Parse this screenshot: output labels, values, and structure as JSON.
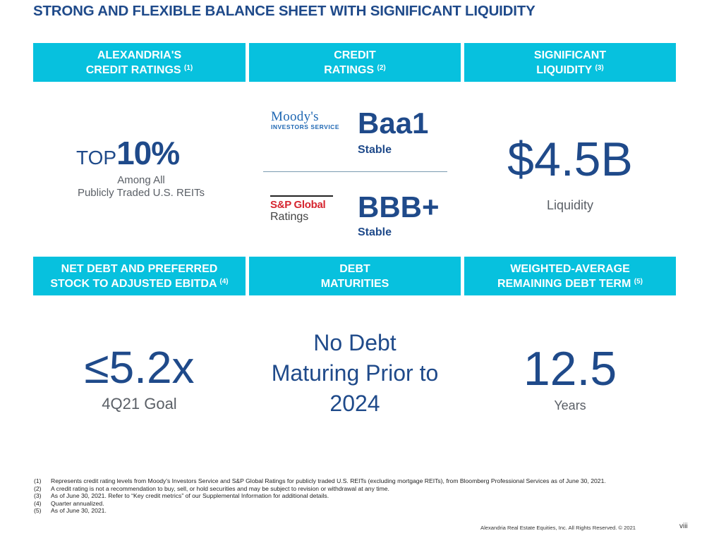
{
  "title": "STRONG AND FLEXIBLE BALANCE SHEET WITH SIGNIFICANT LIQUIDITY",
  "colors": {
    "header_bg": "#07c1de",
    "navy": "#1f4a8a",
    "gray_text": "#5a5f66",
    "sp_red": "#d6252f",
    "moodys_blue": "#1e67b3"
  },
  "sections": {
    "alexandria_credit": {
      "header_line1": "ALEXANDRIA'S",
      "header_line2": "CREDIT RATINGS",
      "footnote": "(1)",
      "prefix": "TOP",
      "value": "10%",
      "sub_line1": "Among All",
      "sub_line2": "Publicly Traded U.S. REITs"
    },
    "credit_ratings": {
      "header_line1": "CREDIT",
      "header_line2": "RATINGS",
      "footnote": "(2)",
      "moodys": {
        "logo_line1": "Moody's",
        "logo_line2": "INVESTORS SERVICE",
        "rating": "Baa1",
        "outlook": "Stable"
      },
      "sp": {
        "logo_line1": "S&P Global",
        "logo_line2": "Ratings",
        "rating": "BBB+",
        "outlook": "Stable"
      }
    },
    "liquidity": {
      "header_line1": "SIGNIFICANT",
      "header_line2": "LIQUIDITY",
      "footnote": "(3)",
      "value": "$4.5B",
      "label": "Liquidity"
    },
    "net_debt": {
      "header_line1": "NET DEBT AND PREFERRED",
      "header_line2": "STOCK TO ADJUSTED EBITDA",
      "footnote": "(4)",
      "value": "≤5.2x",
      "label": "4Q21 Goal"
    },
    "debt_maturities": {
      "header_line1": "DEBT",
      "header_line2": "MATURITIES",
      "line1": "No Debt",
      "line2": "Maturing Prior to",
      "line3": "2024"
    },
    "debt_term": {
      "header_line1": "WEIGHTED-AVERAGE",
      "header_line2": "REMAINING DEBT TERM",
      "footnote": "(5)",
      "value": "12.5",
      "label": "Years"
    }
  },
  "footnotes": [
    {
      "num": "(1)",
      "text": "Represents credit rating levels from Moody's Investors Service and S&P Global Ratings for publicly traded U.S. REITs (excluding mortgage REITs), from Bloomberg Professional Services as of June 30, 2021."
    },
    {
      "num": "(2)",
      "text": "A credit rating is not a recommendation to buy, sell, or hold securities and may be subject to revision or withdrawal at any time."
    },
    {
      "num": "(3)",
      "text": "As of June 30, 2021. Refer to “Key credit metrics” of our Supplemental Information for additional details."
    },
    {
      "num": "(4)",
      "text": "Quarter annualized."
    },
    {
      "num": "(5)",
      "text": "As of June 30, 2021."
    }
  ],
  "footer": {
    "copyright": "Alexandria Real Estate Equities, Inc. All Rights Reserved. © 2021",
    "page": "viii"
  }
}
